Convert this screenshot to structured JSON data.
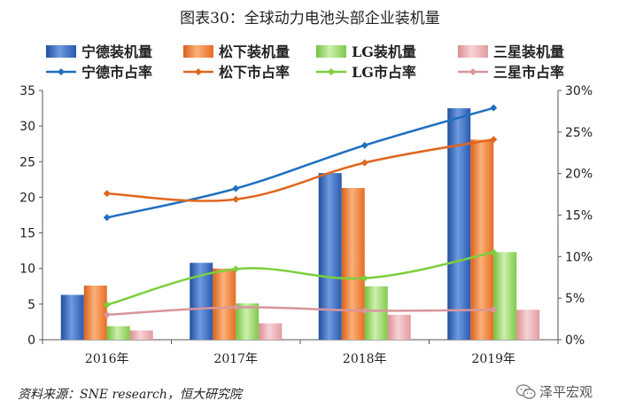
{
  "figure": {
    "title": "图表30：全球动力电池头部企业装机量",
    "source": "资料来源：SNE research，恒大研究院",
    "watermark": "泽平宏观"
  },
  "chart_data": {
    "type": "bar+line",
    "categories": [
      "2016年",
      "2017年",
      "2018年",
      "2019年"
    ],
    "y_left": {
      "min": 0,
      "max": 35,
      "ticks": [
        0,
        5,
        10,
        15,
        20,
        25,
        30,
        35
      ]
    },
    "y_right": {
      "min": 0,
      "max": 30,
      "ticks": [
        0,
        5,
        10,
        15,
        20,
        25,
        30
      ],
      "tick_labels": [
        "0%",
        "5%",
        "10%",
        "15%",
        "20%",
        "25%",
        "30%"
      ]
    },
    "bar_series": [
      {
        "name": "宁德装机量",
        "color": "#3a66b8",
        "values": [
          6.3,
          10.8,
          23.4,
          32.5
        ]
      },
      {
        "name": "松下装机量",
        "color": "#f07c2a",
        "values": [
          7.6,
          10.0,
          21.3,
          28.1
        ]
      },
      {
        "name": "LG装机量",
        "color": "#8fd45a",
        "values": [
          1.9,
          5.1,
          7.5,
          12.3
        ]
      },
      {
        "name": "三星装机量",
        "color": "#e9a3a8",
        "values": [
          1.3,
          2.3,
          3.5,
          4.2
        ]
      }
    ],
    "line_series": [
      {
        "name": "宁德市占率",
        "color": "#1f6fc0",
        "values": [
          14.7,
          18.2,
          23.4,
          27.9
        ]
      },
      {
        "name": "松下市占率",
        "color": "#e0661e",
        "values": [
          17.6,
          16.9,
          21.3,
          24.1
        ]
      },
      {
        "name": "LG市占率",
        "color": "#7ccf3c",
        "values": [
          4.2,
          8.5,
          7.4,
          10.5
        ]
      },
      {
        "name": "三星市占率",
        "color": "#d9959b",
        "values": [
          3.0,
          3.9,
          3.5,
          3.6
        ]
      }
    ],
    "legend": [
      {
        "label": "宁德装机量",
        "kind": "bar",
        "color": "#3a66b8"
      },
      {
        "label": "松下装机量",
        "kind": "bar",
        "color": "#f07c2a"
      },
      {
        "label": "LG装机量",
        "kind": "bar",
        "color": "#8fd45a"
      },
      {
        "label": "三星装机量",
        "kind": "bar",
        "color": "#e9a3a8"
      },
      {
        "label": "宁德市占率",
        "kind": "line",
        "color": "#1f6fc0"
      },
      {
        "label": "松下市占率",
        "kind": "line",
        "color": "#e0661e"
      },
      {
        "label": "LG市占率",
        "kind": "line",
        "color": "#7ccf3c"
      },
      {
        "label": "三星市占率",
        "kind": "line",
        "color": "#d9959b"
      }
    ]
  }
}
